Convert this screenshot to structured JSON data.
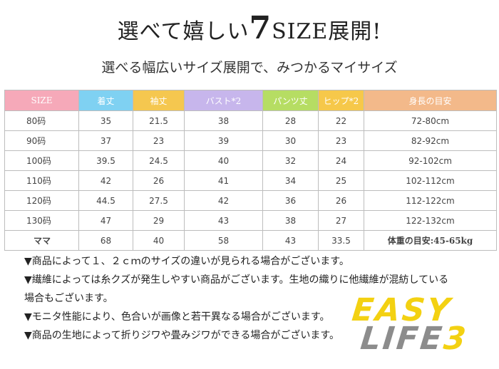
{
  "title": {
    "prefix": "選べて嬉しい",
    "big": "7",
    "suffix": "SIZE展開!"
  },
  "subtitle": "選べる幅広いサイズ展開で、みつかるマイサイズ",
  "table": {
    "headers": [
      {
        "label": "SIZE",
        "color": "#f6a9b9"
      },
      {
        "label": "着丈",
        "color": "#7fd1f2"
      },
      {
        "label": "袖丈",
        "color": "#f5c74f"
      },
      {
        "label": "バスト*2",
        "color": "#c7b6ec"
      },
      {
        "label": "パンツ丈",
        "color": "#b6dd63"
      },
      {
        "label": "ヒップ*2",
        "color": "#f6c84a"
      },
      {
        "label": "身長の目安",
        "color": "#f3b98a"
      }
    ],
    "rows": [
      [
        "80码",
        "35",
        "21.5",
        "38",
        "28",
        "22",
        "72-80cm"
      ],
      [
        "90码",
        "37",
        "23",
        "39",
        "30",
        "23",
        "82-92cm"
      ],
      [
        "100码",
        "39.5",
        "24.5",
        "40",
        "32",
        "24",
        "92-102cm"
      ],
      [
        "110码",
        "42",
        "26",
        "41",
        "34",
        "25",
        "102-112cm"
      ],
      [
        "120码",
        "44.5",
        "27.5",
        "42",
        "36",
        "26",
        "112-122cm"
      ],
      [
        "130码",
        "47",
        "29",
        "43",
        "38",
        "27",
        "122-132cm"
      ],
      [
        "ママ",
        "68",
        "40",
        "58",
        "43",
        "33.5",
        "体重の目安:45-65kg"
      ]
    ]
  },
  "notes": [
    "▼商品によって１、２ｃｍのサイズの違いが見られる場合がございます。",
    "▼繊維によっては糸クズが発生しやすい商品がございます。生地の織りに他繊維が混紡している",
    "場合もございます。",
    "▼モニタ性能により、色合いが画像と若干異なる場合がございます。",
    "▼商品の生地によって折りジワや畳みジワができる場合がございます。"
  ],
  "logo": {
    "line1": "EASY",
    "line2": "LIFE",
    "number": "3"
  }
}
